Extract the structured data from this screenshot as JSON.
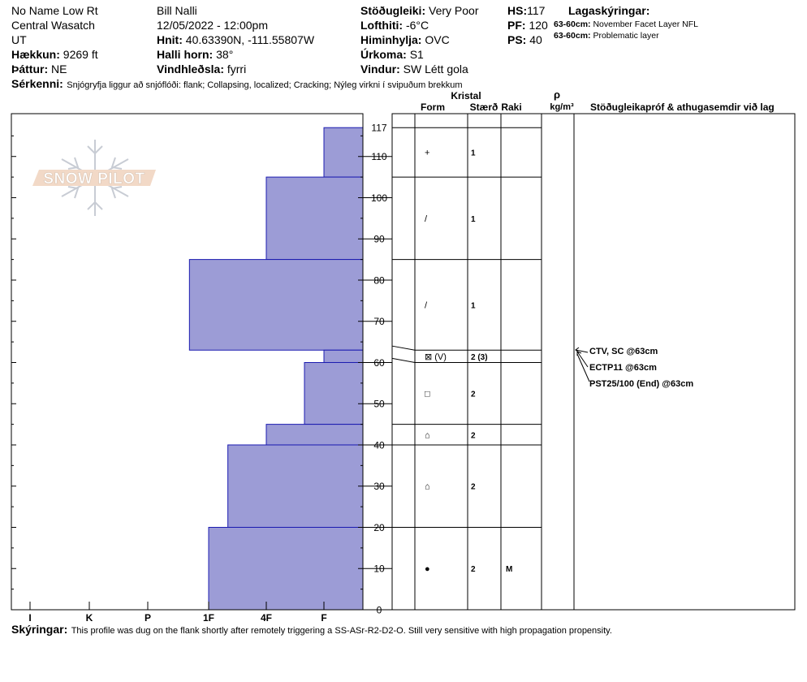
{
  "header": {
    "site": "No Name Low Rt",
    "range": "Central Wasatch",
    "state": "UT",
    "observer": "Bill Nalli",
    "datetime": "12/05/2022 - 12:00pm",
    "elevation": {
      "label": "Hækkun:",
      "value": "9269 ft"
    },
    "aspect": {
      "label": "Þáttur:",
      "value": "NE"
    },
    "coords": {
      "label": "Hnit:",
      "value": "40.63390N, -111.55807W"
    },
    "slope": {
      "label": "Halli horn:",
      "value": "38°"
    },
    "wind_loading": {
      "label": "Vindhleðsla:",
      "value": "fyrri"
    },
    "stability": {
      "label": "Stöðugleiki:",
      "value": "Very Poor"
    },
    "air_temp": {
      "label": "Lofthiti:",
      "value": "-6°C"
    },
    "sky": {
      "label": "Himinhylja:",
      "value": "OVC"
    },
    "precip": {
      "label": "Úrkoma:",
      "value": "S1"
    },
    "wind": {
      "label": "Vindur:",
      "value": "SW Létt gola"
    },
    "hs": {
      "label": "HS:",
      "value": "117"
    },
    "pf": {
      "label": "PF:",
      "value": "120"
    },
    "ps": {
      "label": "PS:",
      "value": "40"
    },
    "layer_legend": {
      "title": "Lagaskýringar:",
      "items": [
        {
          "depth": "63-60cm:",
          "text": "November Facet Layer NFL"
        },
        {
          "depth": "63-60cm:",
          "text": "Problematic layer"
        }
      ]
    },
    "features": {
      "label": "Sérkenni:",
      "value": "Snjógryfja liggur að snjóflóði: flank; Collapsing, localized; Cracking; Nýleg virkni í svipuðum brekkum"
    }
  },
  "logo": {
    "text": "SNOW PILOT"
  },
  "columns": {
    "crystal": "Kristal",
    "form": "Form",
    "size": "Stærð",
    "moisture": "Raki",
    "density_symbol": "ρ",
    "density_unit": "kg/m³",
    "tests": "Stöðugleikapróf & athugasemdir við lag"
  },
  "tests": [
    {
      "text": "CTV, SC @63cm"
    },
    {
      "text": "ECTP11 @63cm"
    },
    {
      "text": "PST25/100 (End) @63cm"
    }
  ],
  "comments": {
    "label": "Skýringar:",
    "value": "This profile was dug on the flank shortly after remotely triggering a SS-ASr-R2-D2-O. Still very sensitive with high propagation propensity."
  },
  "chart_data": {
    "type": "bar",
    "orientation": "horizontal",
    "x_categories": [
      "I",
      "K",
      "P",
      "1F",
      "4F",
      "F"
    ],
    "x_scale": "hand hardness, increasing to the left",
    "y_ticks": [
      0,
      10,
      20,
      30,
      40,
      50,
      60,
      70,
      80,
      90,
      100,
      110,
      117
    ],
    "ylim": [
      0,
      117
    ],
    "bar_color": "#9c9cd6",
    "layers": [
      {
        "top": 117,
        "bottom": 105,
        "hardness": "F",
        "form": "+",
        "size": "1",
        "moisture": ""
      },
      {
        "top": 105,
        "bottom": 85,
        "hardness": "4F",
        "form": "/",
        "size": "1",
        "moisture": ""
      },
      {
        "top": 85,
        "bottom": 63,
        "hardness": "1F+",
        "form": "/",
        "size": "1",
        "moisture": ""
      },
      {
        "top": 63,
        "bottom": 60,
        "hardness": "F",
        "form": "⊠ (V)",
        "size": "2 (3)",
        "moisture": ""
      },
      {
        "top": 60,
        "bottom": 45,
        "hardness": "F+",
        "form": "□",
        "size": "2",
        "moisture": ""
      },
      {
        "top": 45,
        "bottom": 40,
        "hardness": "4F",
        "form": "⌂",
        "size": "2",
        "moisture": ""
      },
      {
        "top": 40,
        "bottom": 20,
        "hardness": "1F-",
        "form": "⌂",
        "size": "2",
        "moisture": ""
      },
      {
        "top": 20,
        "bottom": 0,
        "hardness": "1F",
        "form": "●",
        "size": "2",
        "moisture": "M"
      }
    ]
  }
}
